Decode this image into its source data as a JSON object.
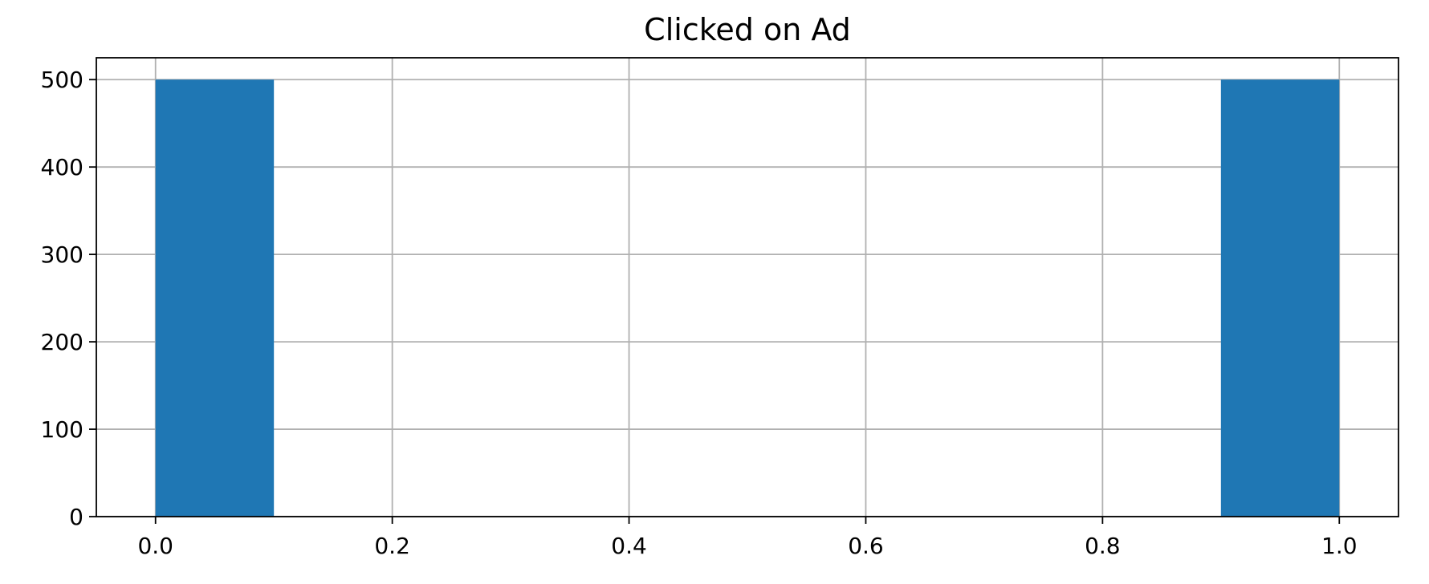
{
  "chart_data": {
    "type": "bar",
    "title": "Clicked on Ad",
    "xlabel": "",
    "ylabel": "",
    "bins": [
      {
        "x0": 0.0,
        "x1": 0.1,
        "value": 500
      },
      {
        "x0": 0.9,
        "x1": 1.0,
        "value": 500
      }
    ],
    "xlim": [
      -0.05,
      1.05
    ],
    "ylim": [
      0,
      525
    ],
    "xticks": [
      0.0,
      0.2,
      0.4,
      0.6,
      0.8,
      1.0
    ],
    "xtick_labels": [
      "0.0",
      "0.2",
      "0.4",
      "0.6",
      "0.8",
      "1.0"
    ],
    "yticks": [
      0,
      100,
      200,
      300,
      400,
      500
    ],
    "ytick_labels": [
      "0",
      "100",
      "200",
      "300",
      "400",
      "500"
    ],
    "grid": true,
    "bar_color": "#1f77b4"
  }
}
